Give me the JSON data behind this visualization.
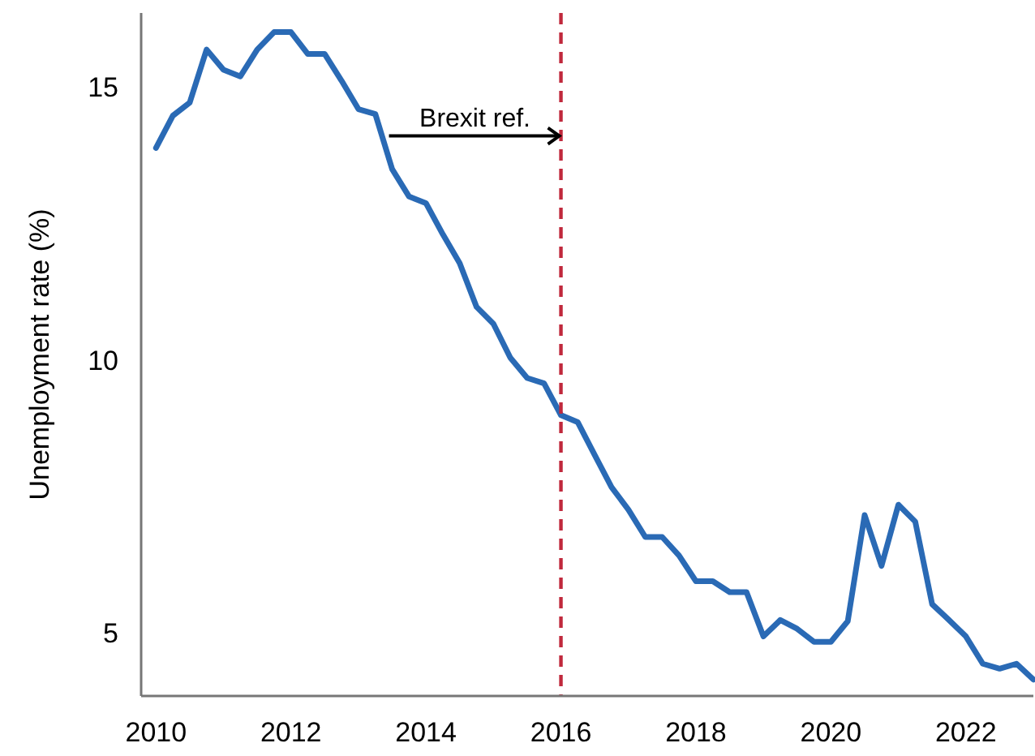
{
  "chart_data": {
    "type": "line",
    "ylabel": "Unemployment rate (%)",
    "x": [
      2010,
      2010.25,
      2010.5,
      2010.75,
      2011,
      2011.25,
      2011.5,
      2011.75,
      2012,
      2012.25,
      2012.5,
      2012.75,
      2013,
      2013.25,
      2013.5,
      2013.75,
      2014,
      2014.25,
      2014.5,
      2014.75,
      2015,
      2015.25,
      2015.5,
      2015.75,
      2016,
      2016.25,
      2016.5,
      2016.75,
      2017,
      2017.25,
      2017.5,
      2017.75,
      2018,
      2018.25,
      2018.5,
      2018.75,
      2019,
      2019.25,
      2019.5,
      2019.75,
      2020,
      2020.25,
      2020.5,
      2020.75,
      2021,
      2021.25,
      2021.5,
      2021.75,
      2022,
      2022.25,
      2022.5,
      2022.75,
      2023
    ],
    "series": [
      {
        "color": "#2a6ab5",
        "values": [
          13.88,
          14.47,
          14.71,
          15.68,
          15.31,
          15.19,
          15.68,
          16.0,
          16.0,
          15.6,
          15.6,
          15.11,
          14.59,
          14.5,
          13.49,
          12.99,
          12.87,
          12.3,
          11.77,
          10.97,
          10.66,
          10.04,
          9.67,
          9.57,
          8.99,
          8.86,
          8.26,
          7.67,
          7.26,
          6.76,
          6.76,
          6.42,
          5.95,
          5.95,
          5.75,
          5.75,
          4.94,
          5.24,
          5.08,
          4.84,
          4.84,
          5.22,
          7.16,
          6.23,
          7.35,
          7.04,
          5.53,
          5.24,
          4.94,
          4.44,
          4.35,
          4.44,
          4.15
        ]
      }
    ],
    "xlim": [
      2009.78,
      2023.0
    ],
    "ylim": [
      3.85,
      16.35
    ],
    "xticks": [
      2010,
      2012,
      2014,
      2016,
      2018,
      2020,
      2022
    ],
    "yticks": [
      5,
      10,
      15
    ],
    "grid": false,
    "marker": "none",
    "line_style": "solid",
    "ref_lines": [
      {
        "axis": "x",
        "value": 2016,
        "color": "#c0283c",
        "line_style": "dashed"
      }
    ],
    "annotations": [
      {
        "text": "Brexit ref.",
        "x": 2016,
        "y": 14.1
      }
    ]
  }
}
